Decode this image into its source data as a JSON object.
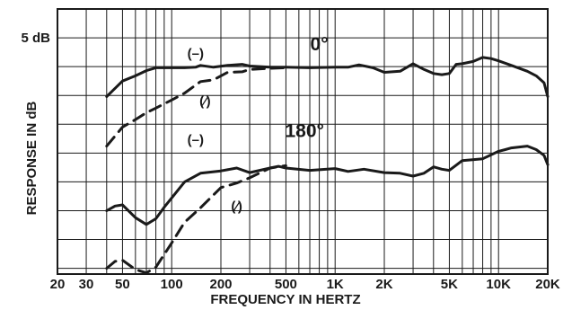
{
  "chart_data": {
    "type": "line",
    "title": "",
    "xlabel": "FREQUENCY IN HERTZ",
    "ylabel": "RESPONSE IN dB",
    "x_scale": "log",
    "xlim": [
      20,
      20000
    ],
    "ylim": [
      -36,
      10
    ],
    "y_gridline_step": 5,
    "grid": true,
    "x_tick_labels": [
      {
        "value": 20,
        "label": "20"
      },
      {
        "value": 30,
        "label": "30"
      },
      {
        "value": 50,
        "label": "50"
      },
      {
        "value": 100,
        "label": "100"
      },
      {
        "value": 200,
        "label": "200"
      },
      {
        "value": 500,
        "label": "500"
      },
      {
        "value": 1000,
        "label": "1K"
      },
      {
        "value": 2000,
        "label": "2K"
      },
      {
        "value": 5000,
        "label": "5K"
      },
      {
        "value": 10000,
        "label": "10K"
      },
      {
        "value": 20000,
        "label": "20K"
      }
    ],
    "y_tick_labels": [
      {
        "value": 5,
        "label": "5 dB"
      }
    ],
    "annotations": [
      {
        "text": "0°",
        "x": 800,
        "y": 2.8,
        "size": "large"
      },
      {
        "text": "180°",
        "x": 650,
        "y": -12.2,
        "size": "large"
      },
      {
        "text": "(–)",
        "x": 140,
        "y": 1.5,
        "size": "small"
      },
      {
        "text": "(⁄)",
        "x": 160,
        "y": -6.8,
        "size": "small"
      },
      {
        "text": "(–)",
        "x": 140,
        "y": -13.5,
        "size": "small"
      },
      {
        "text": "(⁄)",
        "x": 250,
        "y": -25,
        "size": "small"
      }
    ],
    "series": [
      {
        "style": "solid",
        "x": [
          40,
          50,
          60,
          70,
          80,
          100,
          120,
          140,
          150,
          180,
          220,
          270,
          300,
          400,
          500,
          700,
          1000,
          1200,
          1400,
          1700,
          2000,
          2500,
          3000,
          3500,
          4000,
          4500,
          5000,
          5500,
          6000,
          7000,
          8000,
          9000,
          10000,
          12000,
          15000,
          17000,
          19000,
          20000
        ],
        "y": [
          -5.2,
          -2.5,
          -1.6,
          -0.7,
          -0.2,
          -0.2,
          -0.2,
          -0.1,
          0.2,
          -0.1,
          0.2,
          0.4,
          0.1,
          -0.1,
          -0.1,
          -0.2,
          -0.1,
          -0.1,
          0.3,
          -0.2,
          -1.0,
          -0.8,
          0.5,
          -0.5,
          -1.2,
          -1.4,
          -1.2,
          0.4,
          0.5,
          0.9,
          1.6,
          1.4,
          1.0,
          0.2,
          -0.8,
          -1.6,
          -2.8,
          -5.2
        ]
      },
      {
        "style": "dashed",
        "x": [
          40,
          50,
          60,
          70,
          80,
          100,
          120,
          150,
          180,
          220,
          270,
          300,
          400,
          500
        ],
        "y": [
          -13.8,
          -10.5,
          -9.2,
          -8.0,
          -7.2,
          -5.8,
          -4.6,
          -2.6,
          -2.3,
          -1.0,
          -0.9,
          -0.5,
          -0.3,
          -0.2
        ]
      },
      {
        "style": "solid",
        "x": [
          40,
          45,
          50,
          60,
          70,
          80,
          90,
          100,
          120,
          150,
          200,
          250,
          300,
          400,
          450,
          500,
          700,
          1000,
          1200,
          1500,
          2000,
          2500,
          3000,
          3500,
          4000,
          4500,
          5000,
          6000,
          8000,
          10000,
          11000,
          12000,
          15000,
          17000,
          19000,
          20000
        ],
        "y": [
          -25.0,
          -24.2,
          -24.0,
          -26.2,
          -27.4,
          -26.4,
          -24.4,
          -22.8,
          -20.0,
          -18.5,
          -18.1,
          -17.6,
          -18.4,
          -17.6,
          -17.3,
          -17.6,
          -18.0,
          -17.7,
          -18.2,
          -17.8,
          -18.4,
          -18.5,
          -19.0,
          -18.5,
          -17.4,
          -17.8,
          -18.0,
          -16.3,
          -16.0,
          -14.7,
          -14.4,
          -14.1,
          -13.8,
          -14.4,
          -15.4,
          -17.0
        ]
      },
      {
        "style": "dashed",
        "x": [
          40,
          45,
          50,
          60,
          70,
          80,
          100,
          120,
          150,
          200,
          250,
          300,
          400,
          500
        ],
        "y": [
          -35.0,
          -33.8,
          -33.6,
          -35.2,
          -35.8,
          -34.8,
          -30.6,
          -27.0,
          -24.5,
          -21.0,
          -20.2,
          -19.3,
          -17.6,
          -17.2
        ]
      }
    ]
  }
}
